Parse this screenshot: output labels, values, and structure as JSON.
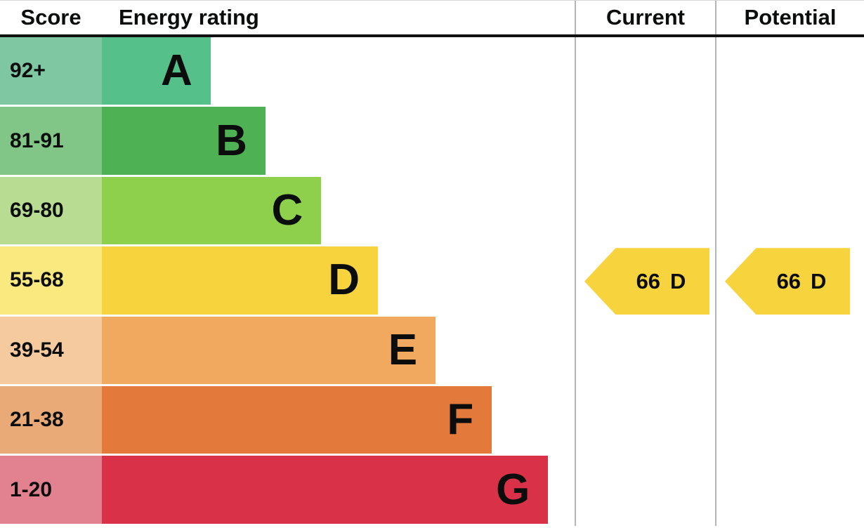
{
  "header": {
    "score_label": "Score",
    "energy_rating_label": "Energy rating",
    "current_label": "Current",
    "potential_label": "Potential"
  },
  "bands": [
    {
      "score": "92+",
      "letter": "A",
      "bar_color": "#55c08a",
      "score_color": "#7fc7a3",
      "width_pct": 23.0
    },
    {
      "score": "81-91",
      "letter": "B",
      "bar_color": "#4eb255",
      "score_color": "#82c687",
      "width_pct": 34.6
    },
    {
      "score": "69-80",
      "letter": "C",
      "bar_color": "#8ecf4c",
      "score_color": "#b8dd92",
      "width_pct": 46.4
    },
    {
      "score": "55-68",
      "letter": "D",
      "bar_color": "#f7d33e",
      "score_color": "#f9e97e",
      "width_pct": 58.4
    },
    {
      "score": "39-54",
      "letter": "E",
      "bar_color": "#f1a95f",
      "score_color": "#f4ca9e",
      "width_pct": 70.6
    },
    {
      "score": "21-38",
      "letter": "F",
      "bar_color": "#e3793b",
      "score_color": "#eaaa78",
      "width_pct": 82.5
    },
    {
      "score": "1-20",
      "letter": "G",
      "bar_color": "#d93248",
      "score_color": "#e2818f",
      "width_pct": 94.4
    }
  ],
  "current": {
    "value": "66",
    "rating": "D",
    "color": "#f7d33e"
  },
  "potential": {
    "value": "66",
    "rating": "D",
    "color": "#f7d33e"
  },
  "chart_data": {
    "type": "bar",
    "title": "Energy rating",
    "categories": [
      "A",
      "B",
      "C",
      "D",
      "E",
      "F",
      "G"
    ],
    "score_ranges": [
      "92+",
      "81-91",
      "69-80",
      "55-68",
      "39-54",
      "21-38",
      "1-20"
    ],
    "bar_lengths_pct": [
      23.0,
      34.6,
      46.4,
      58.4,
      70.6,
      82.5,
      94.4
    ],
    "bar_colors": [
      "#55c08a",
      "#4eb255",
      "#8ecf4c",
      "#f7d33e",
      "#f1a95f",
      "#e3793b",
      "#d93248"
    ],
    "score_cell_colors": [
      "#7fc7a3",
      "#82c687",
      "#b8dd92",
      "#f9e97e",
      "#f4ca9e",
      "#eaaa78",
      "#e2818f"
    ],
    "current": {
      "score": 66,
      "rating": "D"
    },
    "potential": {
      "score": 66,
      "rating": "D"
    },
    "xlabel": "Score",
    "legend_position": "none",
    "grid": false
  }
}
